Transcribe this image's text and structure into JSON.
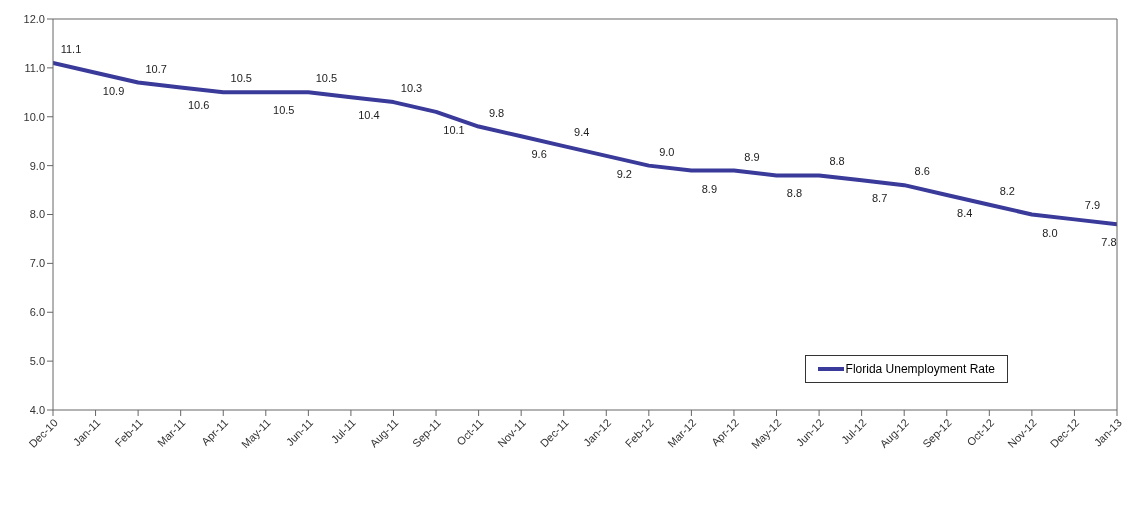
{
  "chart_data": {
    "type": "line",
    "categories": [
      "Dec-10",
      "Jan-11",
      "Feb-11",
      "Mar-11",
      "Apr-11",
      "May-11",
      "Jun-11",
      "Jul-11",
      "Aug-11",
      "Sep-11",
      "Oct-11",
      "Nov-11",
      "Dec-11",
      "Jan-12",
      "Feb-12",
      "Mar-12",
      "Apr-12",
      "May-12",
      "Jun-12",
      "Jul-12",
      "Aug-12",
      "Sep-12",
      "Oct-12",
      "Nov-12",
      "Dec-12",
      "Jan-13"
    ],
    "series": [
      {
        "name": "Florida Unemployment Rate",
        "color": "#3a3a9a",
        "values": [
          11.1,
          10.9,
          10.7,
          10.6,
          10.5,
          10.5,
          10.5,
          10.4,
          10.3,
          10.1,
          9.8,
          9.6,
          9.4,
          9.2,
          9.0,
          8.9,
          8.9,
          8.8,
          8.8,
          8.7,
          8.6,
          8.4,
          8.2,
          8.0,
          7.9,
          7.8
        ],
        "value_labels": [
          "11.1",
          "10.9",
          "10.7",
          "10.6",
          "10.5",
          "10.5",
          "10.5",
          "10.4",
          "10.3",
          "10.1",
          "9.8",
          "9.6",
          "9.4",
          "9.2",
          "9.0",
          "8.9",
          "8.9",
          "8.8",
          "8.8",
          "8.7",
          "8.6",
          "8.4",
          "8.2",
          "8.0",
          "7.9",
          "7.8"
        ]
      }
    ],
    "ylim": [
      4,
      12
    ],
    "yticks": [
      {
        "value": 4,
        "label": "4.0"
      },
      {
        "value": 5,
        "label": "5.0"
      },
      {
        "value": 6,
        "label": "6.0"
      },
      {
        "value": 7,
        "label": "7.0"
      },
      {
        "value": 8,
        "label": "8.0"
      },
      {
        "value": 9,
        "label": "9.0"
      },
      {
        "value": 10,
        "label": "10.0"
      },
      {
        "value": 11,
        "label": "11.0"
      },
      {
        "value": 12,
        "label": "12.0"
      }
    ],
    "grid": false,
    "legend": "bottom right",
    "marker": "none",
    "line_style": "solid"
  }
}
